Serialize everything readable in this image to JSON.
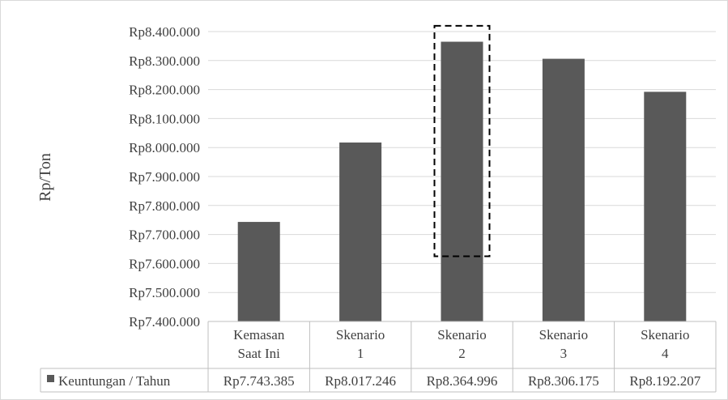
{
  "chart_data": {
    "type": "bar",
    "title": "",
    "xlabel": "",
    "ylabel": "Rp/Ton",
    "ylim": [
      7400000,
      8400000
    ],
    "ytick_step": 100000,
    "grid": true,
    "legend": "bottom-left (in data table)",
    "categories": [
      [
        "Kemasan",
        "Saat Ini"
      ],
      [
        "Skenario",
        "1"
      ],
      [
        "Skenario",
        "2"
      ],
      [
        "Skenario",
        "3"
      ],
      [
        "Skenario",
        "4"
      ]
    ],
    "series": [
      {
        "name": "Keuntungan / Tahun",
        "color": "#595959",
        "values": [
          7743385,
          8017246,
          8364996,
          8306175,
          8192207
        ],
        "value_labels": [
          "Rp7.743.385",
          "Rp8.017.246",
          "Rp8.364.996",
          "Rp8.306.175",
          "Rp8.192.207"
        ]
      }
    ],
    "highlight": {
      "category_index": 2,
      "style": "dashed box",
      "y_range": [
        7625000,
        8420000
      ]
    },
    "colors": {
      "bar": "#595959",
      "grid": "#d9d9d9",
      "axis_text": "#404040",
      "border": "#bfbfbf"
    }
  }
}
